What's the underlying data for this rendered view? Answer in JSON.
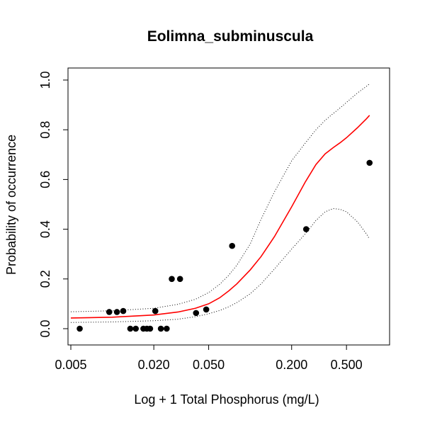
{
  "chart_data": {
    "type": "scatter",
    "title": "Eolimna_subminuscula",
    "xlabel": "Log + 1 Total Phosphorus (mg/L)",
    "ylabel": "Probability of occurrence",
    "x_scale": "log",
    "xlim": [
      0.005,
      0.85
    ],
    "ylim": [
      0.0,
      1.0
    ],
    "x_ticks": [
      0.005,
      0.02,
      0.05,
      0.2,
      0.5
    ],
    "x_tick_labels": [
      "0.005",
      "0.020",
      "0.050",
      "0.200",
      "0.500"
    ],
    "y_ticks": [
      0.0,
      0.2,
      0.4,
      0.6,
      0.8,
      1.0
    ],
    "y_tick_labels": [
      "0.0",
      "0.2",
      "0.4",
      "0.6",
      "0.8",
      "1.0"
    ],
    "grid": false,
    "colors": {
      "fit": "#ff0000",
      "band": "#000000",
      "points": "#000000"
    },
    "points": [
      {
        "x": 0.0058,
        "y": 0.0
      },
      {
        "x": 0.0095,
        "y": 0.067
      },
      {
        "x": 0.0108,
        "y": 0.067
      },
      {
        "x": 0.012,
        "y": 0.071
      },
      {
        "x": 0.0135,
        "y": 0.0
      },
      {
        "x": 0.0148,
        "y": 0.0
      },
      {
        "x": 0.0168,
        "y": 0.0
      },
      {
        "x": 0.0178,
        "y": 0.0
      },
      {
        "x": 0.0188,
        "y": 0.0
      },
      {
        "x": 0.0205,
        "y": 0.071
      },
      {
        "x": 0.0225,
        "y": 0.0
      },
      {
        "x": 0.0248,
        "y": 0.0
      },
      {
        "x": 0.027,
        "y": 0.2
      },
      {
        "x": 0.031,
        "y": 0.2
      },
      {
        "x": 0.0405,
        "y": 0.063
      },
      {
        "x": 0.048,
        "y": 0.077
      },
      {
        "x": 0.074,
        "y": 0.333
      },
      {
        "x": 0.255,
        "y": 0.4
      },
      {
        "x": 0.735,
        "y": 0.667
      }
    ],
    "series": [
      {
        "type": "line",
        "style": "solid",
        "color": "#ff0000",
        "x": [
          0.005,
          0.01,
          0.02,
          0.03,
          0.04,
          0.05,
          0.06,
          0.07,
          0.08,
          0.1,
          0.12,
          0.15,
          0.2,
          0.25,
          0.3,
          0.35,
          0.4,
          0.45,
          0.5,
          0.6,
          0.7,
          0.735
        ],
        "y": [
          0.043,
          0.046,
          0.055,
          0.067,
          0.082,
          0.1,
          0.124,
          0.152,
          0.18,
          0.236,
          0.29,
          0.37,
          0.49,
          0.588,
          0.66,
          0.703,
          0.728,
          0.748,
          0.768,
          0.808,
          0.845,
          0.858
        ]
      },
      {
        "type": "line",
        "style": "dotted",
        "color": "#000000",
        "x": [
          0.005,
          0.01,
          0.02,
          0.03,
          0.04,
          0.05,
          0.06,
          0.07,
          0.08,
          0.1,
          0.12,
          0.15,
          0.2,
          0.25,
          0.3,
          0.35,
          0.4,
          0.45,
          0.5,
          0.6,
          0.7,
          0.735
        ],
        "y": [
          0.068,
          0.072,
          0.082,
          0.098,
          0.118,
          0.145,
          0.178,
          0.215,
          0.255,
          0.34,
          0.44,
          0.55,
          0.675,
          0.745,
          0.8,
          0.838,
          0.865,
          0.888,
          0.91,
          0.948,
          0.975,
          0.985
        ]
      },
      {
        "type": "line",
        "style": "dotted",
        "color": "#000000",
        "x": [
          0.005,
          0.01,
          0.02,
          0.03,
          0.04,
          0.05,
          0.06,
          0.07,
          0.08,
          0.1,
          0.12,
          0.15,
          0.2,
          0.25,
          0.3,
          0.35,
          0.4,
          0.45,
          0.5,
          0.6,
          0.7,
          0.735
        ],
        "y": [
          0.025,
          0.027,
          0.032,
          0.038,
          0.048,
          0.06,
          0.073,
          0.088,
          0.105,
          0.14,
          0.18,
          0.24,
          0.32,
          0.38,
          0.435,
          0.47,
          0.483,
          0.48,
          0.47,
          0.43,
          0.38,
          0.36
        ]
      }
    ]
  }
}
